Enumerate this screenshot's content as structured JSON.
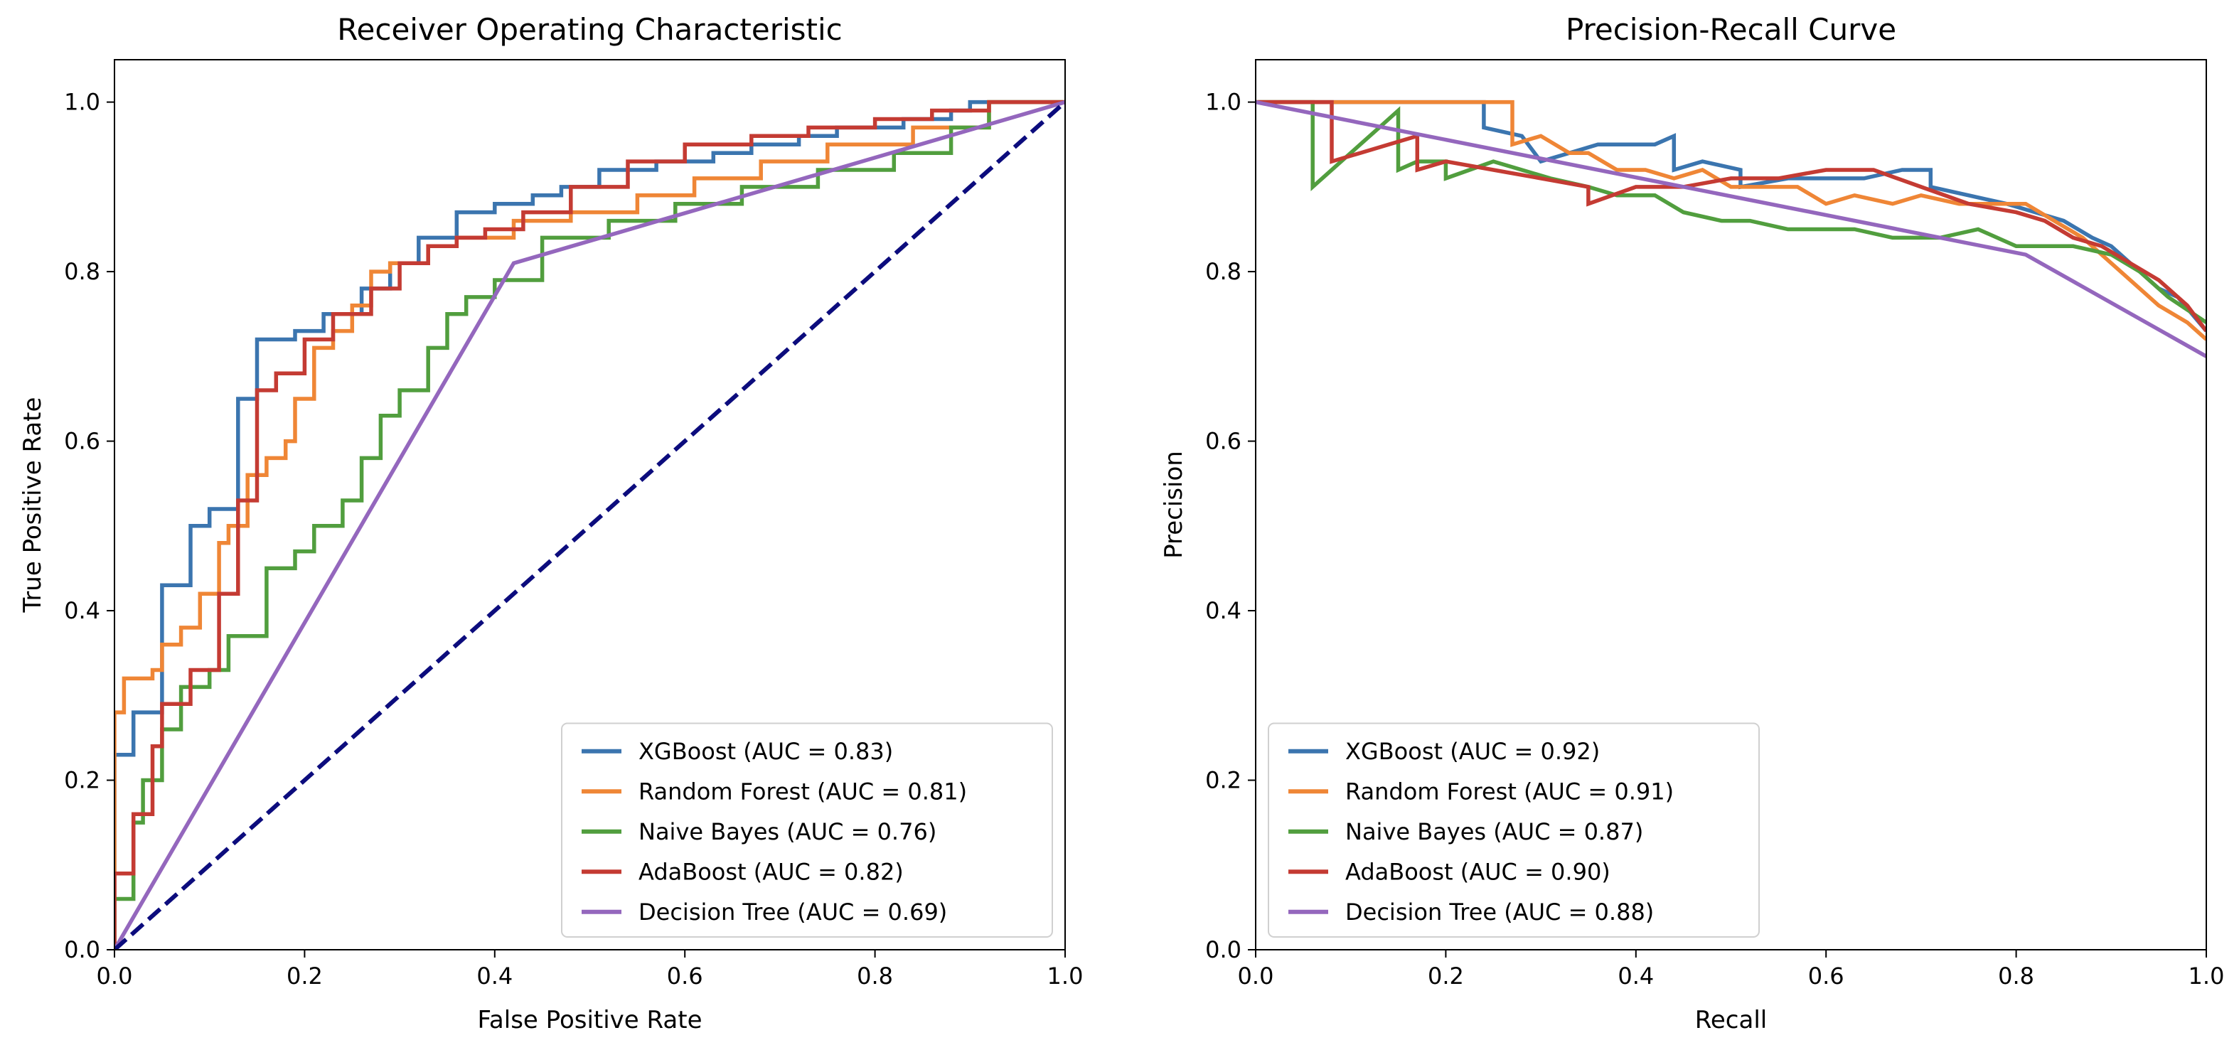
{
  "chart_data": [
    {
      "type": "line",
      "title": "Receiver Operating Characteristic",
      "xlabel": "False Positive Rate",
      "ylabel": "True Positive Rate",
      "xlim": [
        0.0,
        1.0
      ],
      "ylim": [
        0.0,
        1.05
      ],
      "xticks": [
        "0.0",
        "0.2",
        "0.4",
        "0.6",
        "0.8",
        "1.0"
      ],
      "yticks": [
        "0.0",
        "0.2",
        "0.4",
        "0.6",
        "0.8",
        "1.0"
      ],
      "legend_position": "lower-right",
      "series": [
        {
          "name": "XGBoost (AUC = 0.83)",
          "color": "#3b75af",
          "style": "solid",
          "x": [
            0,
            0,
            0.02,
            0.02,
            0.05,
            0.05,
            0.08,
            0.08,
            0.1,
            0.1,
            0.13,
            0.13,
            0.15,
            0.15,
            0.19,
            0.19,
            0.22,
            0.22,
            0.26,
            0.26,
            0.29,
            0.29,
            0.32,
            0.32,
            0.36,
            0.36,
            0.4,
            0.4,
            0.44,
            0.44,
            0.47,
            0.47,
            0.51,
            0.51,
            0.57,
            0.57,
            0.63,
            0.63,
            0.67,
            0.67,
            0.72,
            0.72,
            0.76,
            0.76,
            0.83,
            0.83,
            0.88,
            0.88,
            0.9,
            0.9,
            1.0
          ],
          "y": [
            0,
            0.23,
            0.23,
            0.28,
            0.28,
            0.43,
            0.43,
            0.5,
            0.5,
            0.52,
            0.52,
            0.65,
            0.65,
            0.72,
            0.72,
            0.73,
            0.73,
            0.75,
            0.75,
            0.78,
            0.78,
            0.81,
            0.81,
            0.84,
            0.84,
            0.87,
            0.87,
            0.88,
            0.88,
            0.89,
            0.89,
            0.9,
            0.9,
            0.92,
            0.92,
            0.93,
            0.93,
            0.94,
            0.94,
            0.95,
            0.95,
            0.96,
            0.96,
            0.97,
            0.97,
            0.98,
            0.98,
            0.99,
            0.99,
            1.0,
            1.0
          ]
        },
        {
          "name": "Random Forest (AUC = 0.81)",
          "color": "#ef8636",
          "style": "solid",
          "x": [
            0,
            0,
            0.01,
            0.01,
            0.04,
            0.04,
            0.05,
            0.05,
            0.07,
            0.07,
            0.09,
            0.09,
            0.11,
            0.11,
            0.12,
            0.12,
            0.14,
            0.14,
            0.16,
            0.16,
            0.18,
            0.18,
            0.19,
            0.19,
            0.21,
            0.21,
            0.23,
            0.23,
            0.25,
            0.25,
            0.27,
            0.27,
            0.29,
            0.29,
            0.33,
            0.33,
            0.36,
            0.36,
            0.42,
            0.42,
            0.48,
            0.48,
            0.55,
            0.55,
            0.61,
            0.61,
            0.68,
            0.68,
            0.75,
            0.75,
            0.84,
            0.84,
            0.92,
            0.92,
            1.0
          ],
          "y": [
            0,
            0.28,
            0.28,
            0.32,
            0.32,
            0.33,
            0.33,
            0.36,
            0.36,
            0.38,
            0.38,
            0.42,
            0.42,
            0.48,
            0.48,
            0.5,
            0.5,
            0.56,
            0.56,
            0.58,
            0.58,
            0.6,
            0.6,
            0.65,
            0.65,
            0.71,
            0.71,
            0.73,
            0.73,
            0.76,
            0.76,
            0.8,
            0.8,
            0.81,
            0.81,
            0.83,
            0.83,
            0.84,
            0.84,
            0.86,
            0.86,
            0.87,
            0.87,
            0.89,
            0.89,
            0.91,
            0.91,
            0.93,
            0.93,
            0.95,
            0.95,
            0.97,
            0.97,
            1.0,
            1.0
          ]
        },
        {
          "name": "Naive Bayes (AUC = 0.76)",
          "color": "#519e3e",
          "style": "solid",
          "x": [
            0,
            0,
            0.02,
            0.02,
            0.03,
            0.03,
            0.05,
            0.05,
            0.07,
            0.07,
            0.1,
            0.1,
            0.12,
            0.12,
            0.16,
            0.16,
            0.19,
            0.19,
            0.21,
            0.21,
            0.24,
            0.24,
            0.26,
            0.26,
            0.28,
            0.28,
            0.3,
            0.3,
            0.33,
            0.33,
            0.35,
            0.35,
            0.37,
            0.37,
            0.4,
            0.4,
            0.45,
            0.45,
            0.52,
            0.52,
            0.59,
            0.59,
            0.66,
            0.66,
            0.74,
            0.74,
            0.82,
            0.82,
            0.88,
            0.88,
            0.92,
            0.92,
            1.0
          ],
          "y": [
            0,
            0.06,
            0.06,
            0.15,
            0.15,
            0.2,
            0.2,
            0.26,
            0.26,
            0.31,
            0.31,
            0.33,
            0.33,
            0.37,
            0.37,
            0.45,
            0.45,
            0.47,
            0.47,
            0.5,
            0.5,
            0.53,
            0.53,
            0.58,
            0.58,
            0.63,
            0.63,
            0.66,
            0.66,
            0.71,
            0.71,
            0.75,
            0.75,
            0.77,
            0.77,
            0.79,
            0.79,
            0.84,
            0.84,
            0.86,
            0.86,
            0.88,
            0.88,
            0.9,
            0.9,
            0.92,
            0.92,
            0.94,
            0.94,
            0.97,
            0.97,
            1.0,
            1.0
          ]
        },
        {
          "name": "AdaBoost (AUC = 0.82)",
          "color": "#c43b33",
          "style": "solid",
          "x": [
            0,
            0,
            0.02,
            0.02,
            0.04,
            0.04,
            0.05,
            0.05,
            0.08,
            0.08,
            0.11,
            0.11,
            0.13,
            0.13,
            0.15,
            0.15,
            0.17,
            0.17,
            0.2,
            0.2,
            0.23,
            0.23,
            0.27,
            0.27,
            0.3,
            0.3,
            0.33,
            0.33,
            0.36,
            0.36,
            0.39,
            0.39,
            0.43,
            0.43,
            0.48,
            0.48,
            0.54,
            0.54,
            0.6,
            0.6,
            0.67,
            0.67,
            0.73,
            0.73,
            0.8,
            0.8,
            0.86,
            0.86,
            0.92,
            0.92,
            1.0
          ],
          "y": [
            0,
            0.09,
            0.09,
            0.16,
            0.16,
            0.24,
            0.24,
            0.29,
            0.29,
            0.33,
            0.33,
            0.42,
            0.42,
            0.53,
            0.53,
            0.66,
            0.66,
            0.68,
            0.68,
            0.72,
            0.72,
            0.75,
            0.75,
            0.78,
            0.78,
            0.81,
            0.81,
            0.83,
            0.83,
            0.84,
            0.84,
            0.85,
            0.85,
            0.87,
            0.87,
            0.9,
            0.9,
            0.93,
            0.93,
            0.95,
            0.95,
            0.96,
            0.96,
            0.97,
            0.97,
            0.98,
            0.98,
            0.99,
            0.99,
            1.0,
            1.0
          ]
        },
        {
          "name": "Decision Tree (AUC = 0.69)",
          "color": "#9467bd",
          "style": "solid",
          "x": [
            0,
            0.42,
            1.0
          ],
          "y": [
            0,
            0.81,
            1.0
          ]
        },
        {
          "name": "",
          "color": "#0c0c7d",
          "style": "dashed",
          "x": [
            0,
            1.0
          ],
          "y": [
            0,
            1.0
          ]
        }
      ]
    },
    {
      "type": "line",
      "title": "Precision-Recall Curve",
      "xlabel": "Recall",
      "ylabel": "Precision",
      "xlim": [
        0.0,
        1.0
      ],
      "ylim": [
        0.0,
        1.05
      ],
      "xticks": [
        "0.0",
        "0.2",
        "0.4",
        "0.6",
        "0.8",
        "1.0"
      ],
      "yticks": [
        "0.0",
        "0.2",
        "0.4",
        "0.6",
        "0.8",
        "1.0"
      ],
      "legend_position": "lower-left",
      "series": [
        {
          "name": "XGBoost (AUC = 0.92)",
          "color": "#3b75af",
          "style": "solid",
          "x": [
            0,
            0.24,
            0.24,
            0.28,
            0.3,
            0.33,
            0.36,
            0.39,
            0.42,
            0.44,
            0.44,
            0.47,
            0.51,
            0.51,
            0.56,
            0.6,
            0.64,
            0.68,
            0.71,
            0.71,
            0.75,
            0.79,
            0.82,
            0.85,
            0.88,
            0.9,
            0.93,
            0.95,
            0.97,
            1.0
          ],
          "y": [
            1.0,
            1.0,
            0.97,
            0.96,
            0.93,
            0.94,
            0.95,
            0.95,
            0.95,
            0.96,
            0.92,
            0.93,
            0.92,
            0.9,
            0.91,
            0.91,
            0.91,
            0.92,
            0.92,
            0.9,
            0.89,
            0.88,
            0.87,
            0.86,
            0.84,
            0.83,
            0.8,
            0.78,
            0.77,
            0.73
          ]
        },
        {
          "name": "Random Forest (AUC = 0.91)",
          "color": "#ef8636",
          "style": "solid",
          "x": [
            0,
            0.27,
            0.27,
            0.3,
            0.33,
            0.35,
            0.38,
            0.41,
            0.44,
            0.47,
            0.5,
            0.53,
            0.57,
            0.6,
            0.63,
            0.67,
            0.7,
            0.74,
            0.78,
            0.81,
            0.84,
            0.87,
            0.9,
            0.93,
            0.95,
            0.98,
            1.0
          ],
          "y": [
            1.0,
            1.0,
            0.95,
            0.96,
            0.94,
            0.94,
            0.92,
            0.92,
            0.91,
            0.92,
            0.9,
            0.9,
            0.9,
            0.88,
            0.89,
            0.88,
            0.89,
            0.88,
            0.88,
            0.88,
            0.86,
            0.84,
            0.81,
            0.78,
            0.76,
            0.74,
            0.72
          ]
        },
        {
          "name": "Naive Bayes (AUC = 0.87)",
          "color": "#519e3e",
          "style": "solid",
          "x": [
            0,
            0.06,
            0.06,
            0.07,
            0.09,
            0.11,
            0.13,
            0.15,
            0.15,
            0.17,
            0.2,
            0.2,
            0.25,
            0.28,
            0.31,
            0.35,
            0.38,
            0.42,
            0.45,
            0.49,
            0.52,
            0.56,
            0.6,
            0.63,
            0.67,
            0.72,
            0.76,
            0.8,
            0.83,
            0.86,
            0.9,
            0.93,
            0.96,
            1.0
          ],
          "y": [
            1.0,
            1.0,
            0.9,
            0.91,
            0.93,
            0.95,
            0.97,
            0.99,
            0.92,
            0.93,
            0.93,
            0.91,
            0.93,
            0.92,
            0.91,
            0.9,
            0.89,
            0.89,
            0.87,
            0.86,
            0.86,
            0.85,
            0.85,
            0.85,
            0.84,
            0.84,
            0.85,
            0.83,
            0.83,
            0.83,
            0.82,
            0.8,
            0.77,
            0.74
          ]
        },
        {
          "name": "AdaBoost (AUC = 0.90)",
          "color": "#c43b33",
          "style": "solid",
          "x": [
            0,
            0.08,
            0.08,
            0.11,
            0.14,
            0.17,
            0.17,
            0.2,
            0.25,
            0.3,
            0.35,
            0.35,
            0.4,
            0.45,
            0.5,
            0.55,
            0.6,
            0.65,
            0.7,
            0.75,
            0.8,
            0.83,
            0.86,
            0.89,
            0.92,
            0.95,
            0.98,
            1.0
          ],
          "y": [
            1.0,
            1.0,
            0.93,
            0.94,
            0.95,
            0.96,
            0.92,
            0.93,
            0.92,
            0.91,
            0.9,
            0.88,
            0.9,
            0.9,
            0.91,
            0.91,
            0.92,
            0.92,
            0.9,
            0.88,
            0.87,
            0.86,
            0.84,
            0.83,
            0.81,
            0.79,
            0.76,
            0.73
          ]
        },
        {
          "name": "Decision Tree (AUC = 0.88)",
          "color": "#9467bd",
          "style": "solid",
          "x": [
            0,
            0.81,
            1.0
          ],
          "y": [
            1.0,
            0.82,
            0.7
          ]
        }
      ]
    }
  ]
}
